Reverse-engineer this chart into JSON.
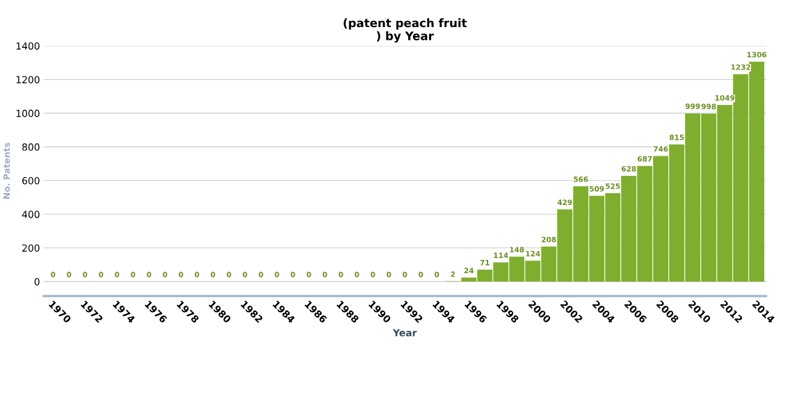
{
  "chart_data": {
    "type": "bar",
    "title": "(patent peach fruit\n) by Year",
    "xlabel": "Year",
    "ylabel": "No. Patents",
    "categories": [
      "1970",
      null,
      "1972",
      null,
      "1974",
      null,
      "1976",
      null,
      "1978",
      null,
      "1980",
      null,
      "1982",
      null,
      "1984",
      null,
      "1986",
      null,
      "1988",
      null,
      "1990",
      null,
      "1992",
      null,
      "1994",
      null,
      "1996",
      null,
      "1998",
      null,
      "2000",
      null,
      "2002",
      null,
      "2004",
      null,
      "2006",
      null,
      "2008",
      null,
      "2010",
      null,
      "2012",
      null,
      "2014"
    ],
    "values": [
      0,
      0,
      0,
      0,
      0,
      0,
      0,
      0,
      0,
      0,
      0,
      0,
      0,
      0,
      0,
      0,
      0,
      0,
      0,
      0,
      0,
      0,
      0,
      0,
      0,
      2,
      24,
      71,
      114,
      148,
      124,
      208,
      429,
      566,
      509,
      525,
      628,
      687,
      746,
      815,
      999,
      998,
      1049,
      1232,
      1306
    ],
    "color": "#7fae2e",
    "data_labels": true,
    "ylim": [
      -86,
      1400
    ],
    "yticks": [
      0,
      200,
      400,
      600,
      800,
      1000,
      1200,
      1400
    ],
    "grid": "y"
  }
}
